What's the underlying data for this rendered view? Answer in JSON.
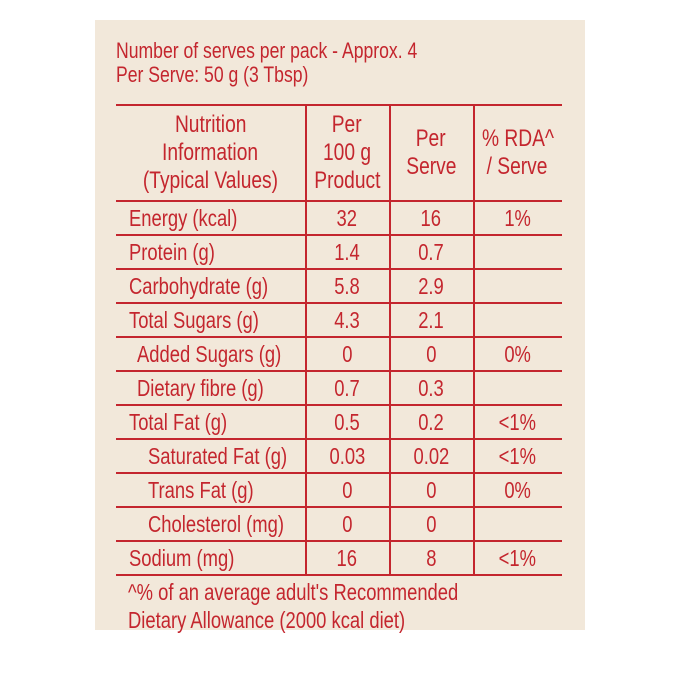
{
  "colors": {
    "text": "#c4262e",
    "background": "#f2e8da"
  },
  "serves_line": "Number of serves per pack - Approx. 4",
  "serving_size_line": "Per Serve: 50 g (3 Tbsp)",
  "table": {
    "headers": [
      [
        "Nutrition",
        "Information",
        "(Typical Values)"
      ],
      [
        "Per",
        "100 g",
        "Product"
      ],
      [
        "Per",
        "Serve"
      ],
      [
        "% RDA^",
        "/ Serve"
      ]
    ],
    "rows": [
      {
        "label": "Energy (kcal)",
        "per100": "32",
        "perServe": "16",
        "rda": "1%",
        "indent": 0
      },
      {
        "label": "Protein (g)",
        "per100": "1.4",
        "perServe": "0.7",
        "rda": "",
        "indent": 0
      },
      {
        "label": "Carbohydrate (g)",
        "per100": "5.8",
        "perServe": "2.9",
        "rda": "",
        "indent": 0
      },
      {
        "label": "Total Sugars (g)",
        "per100": "4.3",
        "perServe": "2.1",
        "rda": "",
        "indent": 1
      },
      {
        "label": "Added Sugars (g)",
        "per100": "0",
        "perServe": "0",
        "rda": "0%",
        "indent": 2
      },
      {
        "label": "Dietary fibre (g)",
        "per100": "0.7",
        "perServe": "0.3",
        "rda": "",
        "indent": 2
      },
      {
        "label": "Total Fat (g)",
        "per100": "0.5",
        "perServe": "0.2",
        "rda": "<1%",
        "indent": 0
      },
      {
        "label": "Saturated Fat (g)",
        "per100": "0.03",
        "perServe": "0.02",
        "rda": "<1%",
        "indent": 3
      },
      {
        "label": "Trans Fat (g)",
        "per100": "0",
        "perServe": "0",
        "rda": "0%",
        "indent": 3
      },
      {
        "label": "Cholesterol (mg)",
        "per100": "0",
        "perServe": "0",
        "rda": "",
        "indent": 3
      },
      {
        "label": "Sodium (mg)",
        "per100": "16",
        "perServe": "8",
        "rda": "<1%",
        "indent": 0
      }
    ]
  },
  "footnote": [
    "^% of an average adult's Recommended",
    "Dietary Allowance (2000 kcal diet)"
  ]
}
